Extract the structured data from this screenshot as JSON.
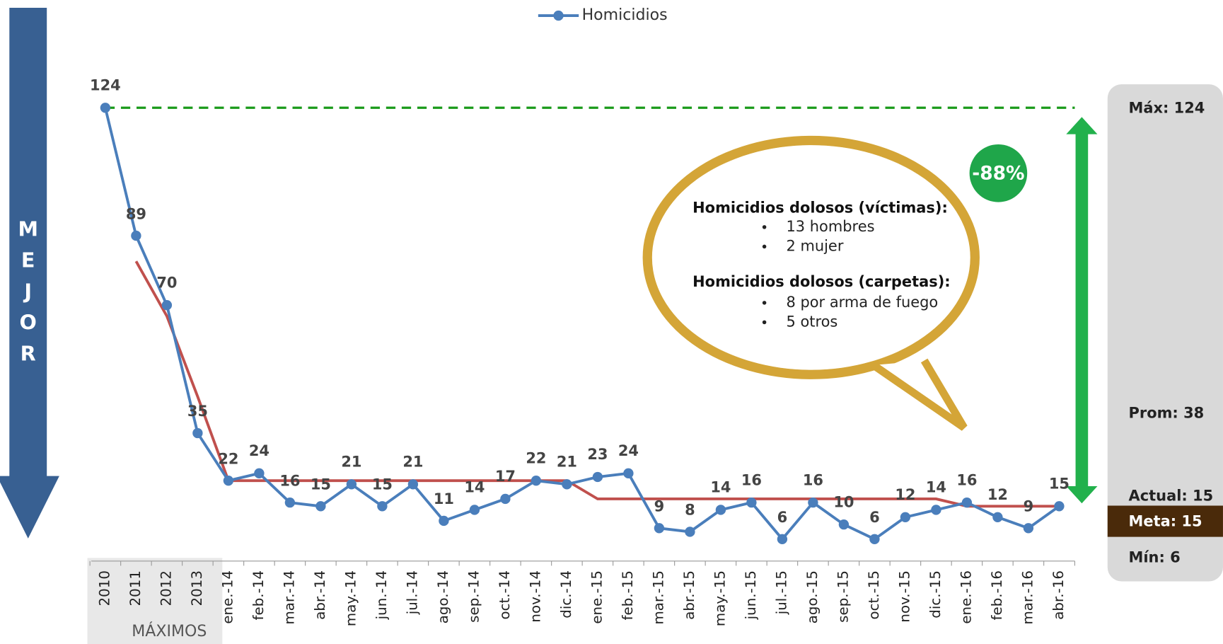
{
  "chart_data": {
    "type": "line",
    "categories": [
      "2010",
      "2011",
      "2012",
      "2013",
      "ene.-14",
      "feb.-14",
      "mar.-14",
      "abr.-14",
      "may.-14",
      "jun.-14",
      "jul.-14",
      "ago.-14",
      "sep.-14",
      "oct.-14",
      "nov.-14",
      "dic.-14",
      "ene.-15",
      "feb.-15",
      "mar.-15",
      "abr.-15",
      "may.-15",
      "jun.-15",
      "jul.-15",
      "ago.-15",
      "sep.-15",
      "oct.-15",
      "nov.-15",
      "dic.-15",
      "ene.-16",
      "feb.-16",
      "mar.-16",
      "abr.-16"
    ],
    "series": [
      {
        "name": "Homicidios",
        "color": "#4a7ebb",
        "values": [
          124,
          89,
          70,
          35,
          22,
          24,
          16,
          15,
          21,
          15,
          21,
          11,
          14,
          17,
          22,
          21,
          23,
          24,
          9,
          8,
          14,
          16,
          6,
          16,
          10,
          6,
          12,
          14,
          16,
          12,
          9,
          15
        ]
      },
      {
        "color": "#c0504d",
        "values": [
          null,
          82,
          67,
          45,
          22,
          22,
          22,
          22,
          22,
          22,
          22,
          22,
          22,
          22,
          22,
          22,
          17,
          17,
          17,
          17,
          17,
          17,
          17,
          17,
          17,
          17,
          17,
          17,
          15,
          15,
          15,
          15
        ]
      }
    ],
    "ylim": [
      0,
      130
    ],
    "reference_line": {
      "value": 124,
      "color": "#1a9a1a"
    },
    "group_label": "MÁXIMOS",
    "change_label": "-88%",
    "side_label": [
      "M",
      "E",
      "J",
      "O",
      "R"
    ]
  },
  "panel": {
    "max": "Máx: 124",
    "avg": "Prom: 38",
    "current": "Actual: 15",
    "goal": "Meta: 15",
    "min": "Mín:  6"
  },
  "callout": {
    "heading1": "Homicidios dolosos (víctimas):",
    "items1": [
      "13 hombres",
      "2 mujer"
    ],
    "heading2": "Homicidios dolosos (carpetas):",
    "items2": [
      "8 por arma de fuego",
      "5 otros"
    ]
  }
}
